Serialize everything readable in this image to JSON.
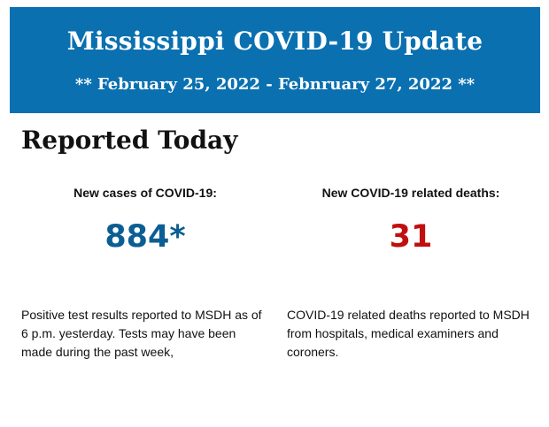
{
  "banner": {
    "title": "Mississippi COVID-19 Update",
    "dates": "** February 25, 2022 - Febnruary 27, 2022 **"
  },
  "section": {
    "heading": "Reported Today"
  },
  "cases": {
    "label": "New cases of COVID-19:",
    "value": "884*",
    "description": "Positive test results reported to MSDH as of 6 p.m. yesterday. Tests may have been made during the past week,"
  },
  "deaths": {
    "label": "New COVID-19 related deaths:",
    "value": "31",
    "description": "COVID-19 related deaths reported to MSDH from hospitals, medical examiners and coroners."
  },
  "colors": {
    "banner_bg": "#0a70b0",
    "cases_value": "#0b5e93",
    "deaths_value": "#c00f0f"
  }
}
